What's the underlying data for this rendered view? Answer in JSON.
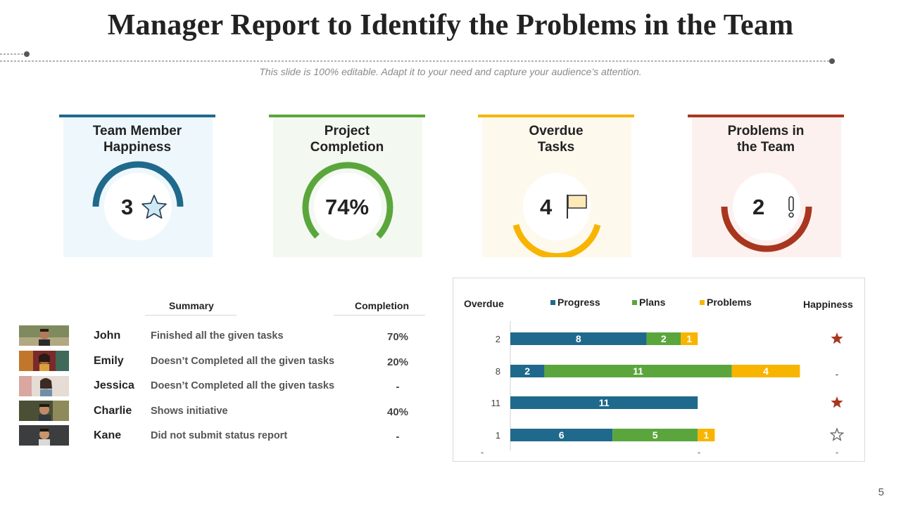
{
  "title": "Manager Report to Identify the Problems in the Team",
  "subtitle": "This slide is 100% editable.  Adapt it to your need and capture your audience’s attention.",
  "page_number": "5",
  "colors": {
    "blue": "#1f6a8c",
    "green": "#5ba63c",
    "yellow": "#f7b500",
    "red": "#a8361f"
  },
  "cards": [
    {
      "title_line1": "Team Member",
      "title_line2": "Happiness",
      "value": "3",
      "icon": "star-icon",
      "accent": "#1f6a8c",
      "bg": "#eef7fc"
    },
    {
      "title_line1": "Project",
      "title_line2": "Completion",
      "value": "74%",
      "icon": "",
      "accent": "#5ba63c",
      "bg": "#f3f9f0"
    },
    {
      "title_line1": "Overdue",
      "title_line2": "Tasks",
      "value": "4",
      "icon": "flag-icon",
      "accent": "#f7b500",
      "bg": "#fef9ed"
    },
    {
      "title_line1": "Problems in",
      "title_line2": "the Team",
      "value": "2",
      "icon": "exclamation-icon",
      "accent": "#a8361f",
      "bg": "#fcf1ee"
    }
  ],
  "table": {
    "summary_header": "Summary",
    "completion_header": "Completion",
    "rows": [
      {
        "name": "John",
        "summary": "Finished all the given tasks",
        "completion": "70%"
      },
      {
        "name": "Emily",
        "summary": "Doesn’t Completed all the given tasks",
        "completion": "20%"
      },
      {
        "name": "Jessica",
        "summary": "Doesn’t Completed all the given tasks",
        "completion": "-"
      },
      {
        "name": "Charlie",
        "summary": "Shows initiative",
        "completion": "40%"
      },
      {
        "name": "Kane",
        "summary": "Did not submit status report",
        "completion": "-"
      }
    ]
  },
  "chart_data": {
    "type": "bar",
    "orientation": "horizontal",
    "stacked": true,
    "left_header": "Overdue",
    "right_header": "Happiness",
    "categories": [
      "2",
      "8",
      "11",
      "1"
    ],
    "series": [
      {
        "name": "Progress",
        "color": "#1f6a8c",
        "values": [
          8,
          2,
          11,
          6
        ]
      },
      {
        "name": "Plans",
        "color": "#5ba63c",
        "values": [
          2,
          11,
          0,
          5
        ]
      },
      {
        "name": "Problems",
        "color": "#f7b500",
        "values": [
          1,
          4,
          0,
          1
        ]
      }
    ],
    "happiness": [
      "filled-star",
      "-",
      "filled-star",
      "outline-star"
    ],
    "bottom_labels": [
      "-",
      "-",
      "-"
    ],
    "legend": "top"
  }
}
